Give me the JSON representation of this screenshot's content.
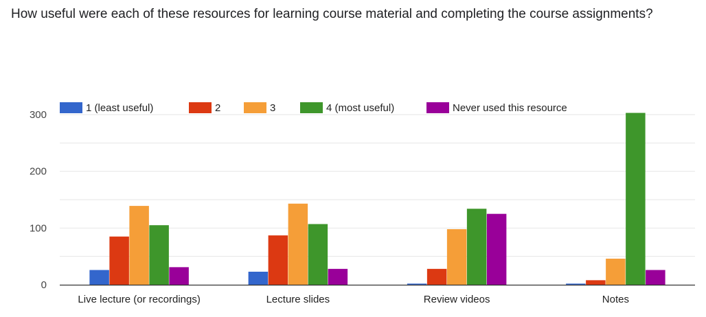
{
  "question": {
    "title": "How useful were each of these resources for learning course material and completing the course assignments?"
  },
  "colors": {
    "series": [
      "#3366cc",
      "#dc3912",
      "#f59e38",
      "#3e962b",
      "#990099"
    ],
    "gridline": "#e6e6e6",
    "baseline": "#333333"
  },
  "chart_data": {
    "type": "bar",
    "title": "",
    "xlabel": "",
    "ylabel": "",
    "categories": [
      "Live lecture (or recordings)",
      "Lecture slides",
      "Review videos",
      "Notes"
    ],
    "series": [
      {
        "name": "1 (least useful)",
        "values": [
          26,
          23,
          2,
          2
        ]
      },
      {
        "name": "2",
        "values": [
          85,
          87,
          28,
          8
        ]
      },
      {
        "name": "3",
        "values": [
          139,
          143,
          98,
          46
        ]
      },
      {
        "name": "4 (most useful)",
        "values": [
          105,
          107,
          134,
          303
        ]
      },
      {
        "name": "Never used this resource",
        "values": [
          31,
          28,
          125,
          26
        ]
      }
    ],
    "ylim": [
      0,
      300
    ],
    "yticks": [
      0,
      100,
      200,
      300
    ],
    "grid": true,
    "legend_position": "top"
  }
}
